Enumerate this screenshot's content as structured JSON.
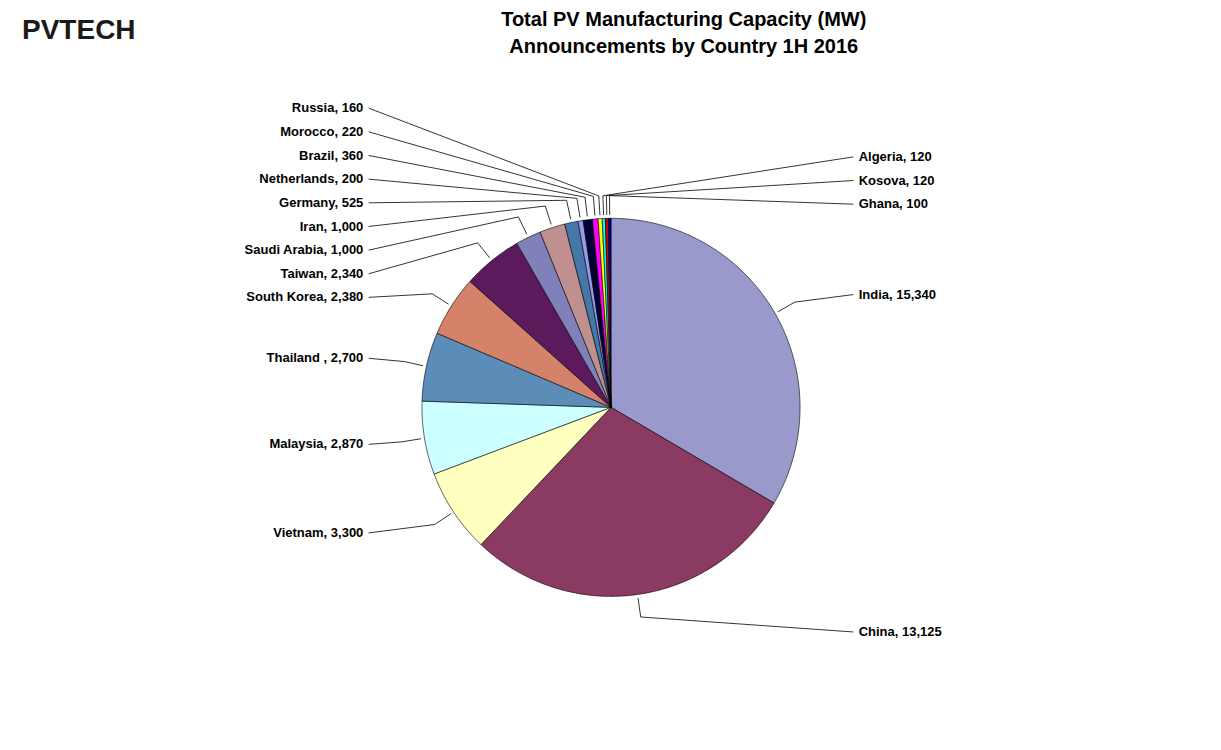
{
  "chart_data": {
    "type": "pie",
    "title": "Total PV Manufacturing Capacity (MW)",
    "subtitle": "Announcements by Country 1H 2016",
    "annotations": [
      "PVTECH"
    ],
    "categories": [
      "India",
      "China",
      "Vietnam",
      "Malaysia",
      "Thailand",
      "South Korea",
      "Taiwan",
      "Saudi Arabia",
      "Iran",
      "Germany",
      "Netherlands",
      "Brazil",
      "Morocco",
      "Russia",
      "Algeria",
      "Kosova",
      "Ghana"
    ],
    "values": [
      15340,
      13125,
      3300,
      2870,
      2700,
      2380,
      2340,
      1000,
      1000,
      525,
      200,
      360,
      220,
      160,
      120,
      120,
      100
    ],
    "value_labels": [
      "India, 15,340",
      "China, 13,125",
      "Vietnam, 3,300",
      "Malaysia, 2,870",
      "Thailand , 2,700",
      "South Korea, 2,380",
      "Taiwan, 2,340",
      "Saudi Arabia, 1,000",
      "Iran, 1,000",
      "Germany, 525",
      "Netherlands, 200",
      "Brazil, 360",
      "Morocco, 220",
      "Russia, 160",
      "Algeria, 120",
      "Kosova, 120",
      "Ghana, 100"
    ],
    "colors": [
      "#9999CC",
      "#8B3A62",
      "#FFFFC0",
      "#CCFFFF",
      "#5B8DB8",
      "#D4836A",
      "#5C1A5C",
      "#8080BB",
      "#C09090",
      "#4477AA",
      "#9999EE",
      "#000033",
      "#FF00FF",
      "#FFFF00",
      "#00FFFF",
      "#CC0000",
      "#000099"
    ],
    "data_labels": true
  }
}
